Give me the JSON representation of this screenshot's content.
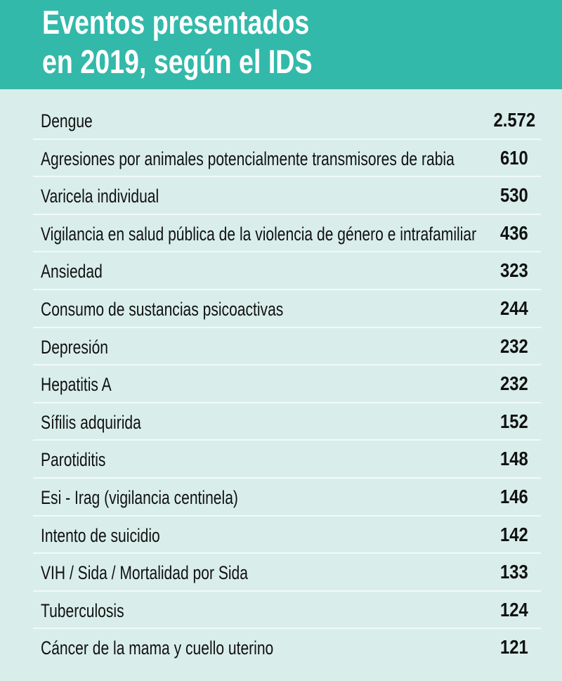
{
  "chart_data": {
    "type": "table",
    "title": [
      "Eventos presentados",
      "en 2019, según el IDS"
    ],
    "rows": [
      {
        "label": "Dengue",
        "value": "2.572"
      },
      {
        "label": "Agresiones por animales potencialmente transmisores de rabia",
        "value": "610"
      },
      {
        "label": "Varicela individual",
        "value": "530"
      },
      {
        "label": "Vigilancia en salud pública de la violencia de género e intrafamiliar",
        "value": "436"
      },
      {
        "label": "Ansiedad",
        "value": "323"
      },
      {
        "label": "Consumo de sustancias psicoactivas",
        "value": "244"
      },
      {
        "label": "Depresión",
        "value": "232"
      },
      {
        "label": "Hepatitis A",
        "value": "232"
      },
      {
        "label": "Sífilis adquirida",
        "value": "152"
      },
      {
        "label": "Parotiditis",
        "value": "148"
      },
      {
        "label": "Esi - Irag (vigilancia centinela)",
        "value": "146"
      },
      {
        "label": "Intento de suicidio",
        "value": "142"
      },
      {
        "label": "VIH / Sida / Mortalidad por Sida",
        "value": "133"
      },
      {
        "label": "Tuberculosis",
        "value": "124"
      },
      {
        "label": "Cáncer de la mama y cuello uterino",
        "value": "121"
      }
    ],
    "colors": {
      "header": "#33b9aa",
      "background": "#d9eeea"
    }
  }
}
